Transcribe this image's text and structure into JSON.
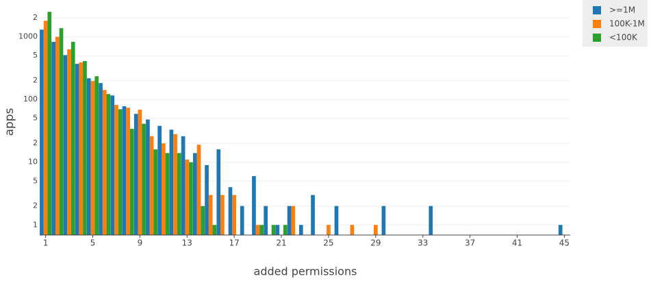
{
  "chart_data": {
    "type": "bar",
    "log_y": true,
    "grid": true,
    "legend_position": "top-right",
    "xlabel": "added permissions",
    "ylabel": "apps",
    "x": [
      1,
      2,
      3,
      4,
      5,
      6,
      7,
      8,
      9,
      10,
      11,
      12,
      13,
      14,
      15,
      16,
      17,
      18,
      19,
      20,
      21,
      22,
      23,
      24,
      25,
      26,
      27,
      28,
      29,
      30,
      31,
      32,
      33,
      34,
      35,
      36,
      37,
      38,
      39,
      40,
      41,
      42,
      43,
      44,
      45
    ],
    "xlim": [
      0.5,
      45.5
    ],
    "xticks": [
      1,
      5,
      9,
      13,
      17,
      21,
      25,
      29,
      33,
      37,
      41,
      45
    ],
    "ylim": [
      0.69,
      3000
    ],
    "yticks": [
      1,
      2,
      5,
      10,
      {
        "value": 20,
        "label": "2"
      },
      {
        "value": 50,
        "label": "5"
      },
      100,
      {
        "value": 200,
        "label": "2"
      },
      {
        "value": 500,
        "label": "5"
      },
      1000,
      {
        "value": 2000,
        "label": "2"
      }
    ],
    "series": [
      {
        "name": ">=1M",
        "color": "#1f77b4",
        "values": [
          1300,
          830,
          510,
          370,
          218,
          183,
          116,
          78,
          59,
          48,
          38,
          33,
          26,
          14,
          9,
          16,
          4,
          2,
          6,
          2,
          1,
          2,
          1,
          3,
          null,
          2,
          null,
          null,
          null,
          2,
          null,
          null,
          null,
          2,
          null,
          null,
          null,
          null,
          null,
          null,
          null,
          null,
          null,
          null,
          1
        ]
      },
      {
        "name": "100K-1M",
        "color": "#ff7f0e",
        "values": [
          1800,
          1000,
          630,
          390,
          197,
          142,
          82,
          74,
          69,
          26,
          20,
          28,
          11,
          19,
          3,
          3,
          3,
          null,
          1,
          null,
          null,
          2,
          null,
          null,
          1,
          null,
          1,
          null,
          1,
          null,
          null,
          null,
          null,
          null,
          null,
          null,
          null,
          null,
          null,
          null,
          null,
          null,
          null,
          null,
          null
        ]
      },
      {
        "name": "<100K",
        "color": "#2ca02c",
        "values": [
          2500,
          1370,
          830,
          410,
          235,
          122,
          70,
          34,
          41,
          16,
          14,
          14,
          10,
          2,
          1,
          null,
          null,
          null,
          1,
          1,
          1,
          null,
          null,
          null,
          null,
          null,
          null,
          null,
          null,
          null,
          null,
          null,
          null,
          null,
          null,
          null,
          null,
          null,
          null,
          null,
          null,
          null,
          null,
          null,
          null
        ]
      }
    ]
  }
}
